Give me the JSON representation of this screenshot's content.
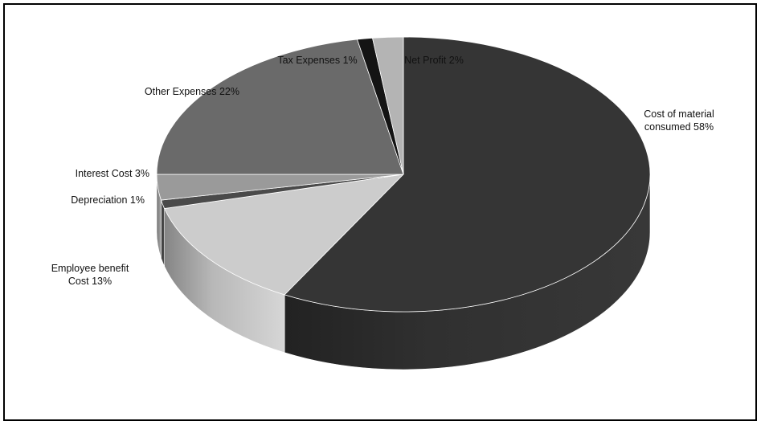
{
  "chart_data": {
    "type": "pie",
    "title": "",
    "three_d": true,
    "slices": [
      {
        "label_lines": [
          "Cost of material",
          "consumed 58%"
        ],
        "value": 58,
        "color": "#353535"
      },
      {
        "label_lines": [
          "Employee benefit",
          "Cost 13%"
        ],
        "value": 13,
        "color": "#cccccc"
      },
      {
        "label_lines": [
          "Depreciation 1%"
        ],
        "value": 1,
        "color": "#4a4a4a"
      },
      {
        "label_lines": [
          "Interest Cost 3%"
        ],
        "value": 3,
        "color": "#9a9a9a"
      },
      {
        "label_lines": [
          "Other Expenses 22%"
        ],
        "value": 22,
        "color": "#6a6a6a"
      },
      {
        "label_lines": [
          "Tax Expenses 1%"
        ],
        "value": 1,
        "color": "#141414"
      },
      {
        "label_lines": [
          "Net Profit 2%"
        ],
        "value": 2,
        "color": "#b4b4b4"
      }
    ]
  }
}
